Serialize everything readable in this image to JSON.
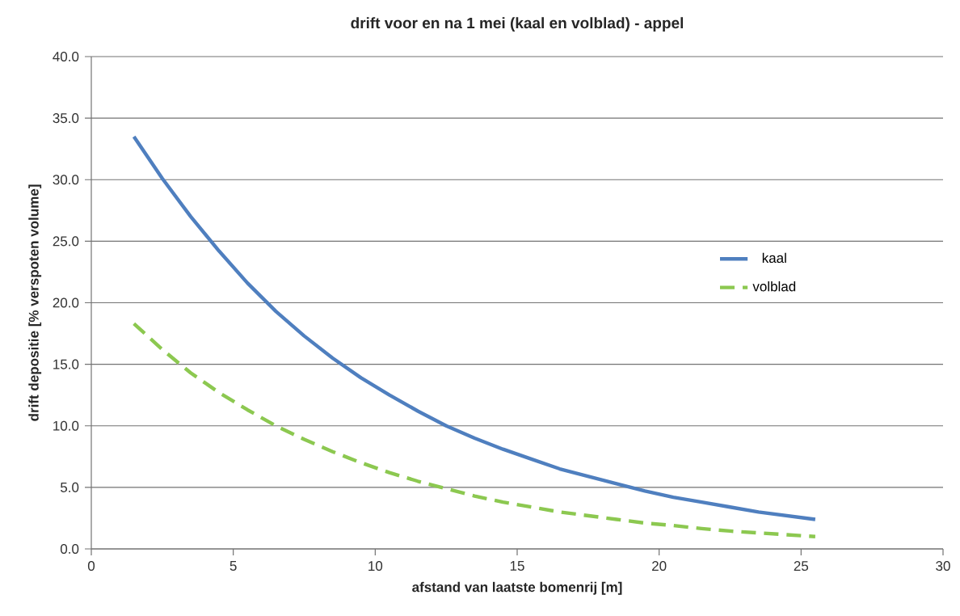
{
  "chart_data": {
    "type": "line",
    "title": "drift voor en na 1 mei (kaal en volblad) - appel",
    "xlabel": "afstand van laatste bomenrij [m]",
    "ylabel": "drift depositie [% verspoten volume]",
    "xlim": [
      0,
      30
    ],
    "xticks": [
      0,
      5,
      10,
      15,
      20,
      25,
      30
    ],
    "ylim": [
      0,
      40
    ],
    "yticks": [
      {
        "value": 0,
        "label": "0.0"
      },
      {
        "value": 5,
        "label": "5.0"
      },
      {
        "value": 10,
        "label": "10.0"
      },
      {
        "value": 15,
        "label": "15.0"
      },
      {
        "value": 20,
        "label": "20.0"
      },
      {
        "value": 25,
        "label": "25.0"
      },
      {
        "value": 30,
        "label": "30.0"
      },
      {
        "value": 35,
        "label": "35.0"
      },
      {
        "value": 40,
        "label": "40.0"
      }
    ],
    "grid": "y",
    "legend": "right",
    "x": [
      1.5,
      2.5,
      3.5,
      4.5,
      5.5,
      6.5,
      7.5,
      8.5,
      9.5,
      10.5,
      11.5,
      12.5,
      13.5,
      14.5,
      15.5,
      16.5,
      17.5,
      18.5,
      19.5,
      20.5,
      21.5,
      22.5,
      23.5,
      24.5,
      25.5
    ],
    "series": [
      {
        "name": "kaal",
        "color": "#4f7fbf",
        "line_style": "solid",
        "values": [
          33.5,
          30.1,
          27.0,
          24.2,
          21.6,
          19.3,
          17.3,
          15.5,
          13.9,
          12.5,
          11.2,
          10.0,
          9.0,
          8.1,
          7.3,
          6.5,
          5.9,
          5.3,
          4.7,
          4.2,
          3.8,
          3.4,
          3.0,
          2.7,
          2.4
        ]
      },
      {
        "name": "volblad",
        "color": "#8cc850",
        "line_style": "dashed",
        "values": [
          18.3,
          16.2,
          14.3,
          12.7,
          11.3,
          10.0,
          8.9,
          7.9,
          7.0,
          6.2,
          5.5,
          4.9,
          4.3,
          3.8,
          3.4,
          3.0,
          2.7,
          2.4,
          2.1,
          1.9,
          1.65,
          1.45,
          1.3,
          1.15,
          1.0
        ]
      }
    ]
  }
}
